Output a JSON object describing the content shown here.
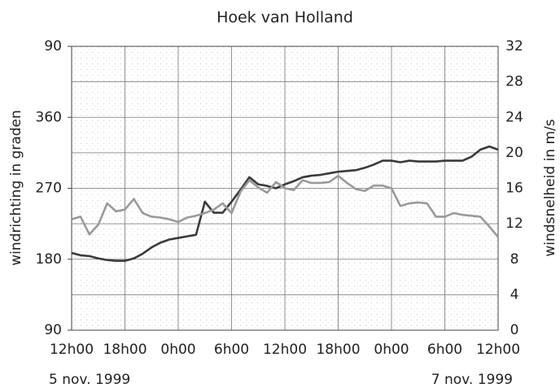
{
  "chart_data": {
    "type": "line",
    "title": "Hoek van Holland",
    "y_label": "windrichting in graden",
    "y2_label": "windsnelheid in m/s",
    "date_labels": [
      "5 nov. 1999",
      "7 nov. 1999"
    ],
    "x": [
      0,
      1,
      2,
      3,
      4,
      5,
      6,
      7,
      8,
      9,
      10,
      11,
      12,
      13,
      14,
      15,
      16,
      17,
      18,
      19,
      20,
      21,
      22,
      23,
      24,
      25,
      26,
      27,
      28,
      29,
      30,
      31,
      32,
      33,
      34,
      35,
      36,
      37,
      38,
      39,
      40,
      41,
      42,
      43,
      44,
      45,
      46,
      47,
      48
    ],
    "xlim": [
      0,
      48
    ],
    "xticks": [
      {
        "value": 0,
        "label": "12h00"
      },
      {
        "value": 6,
        "label": "18h00"
      },
      {
        "value": 12,
        "label": "0h00"
      },
      {
        "value": 18,
        "label": "6h00"
      },
      {
        "value": 24,
        "label": "12h00"
      },
      {
        "value": 30,
        "label": "18h00"
      },
      {
        "value": 36,
        "label": "0h00"
      },
      {
        "value": 42,
        "label": "6h00"
      },
      {
        "value": 48,
        "label": "12h00"
      }
    ],
    "ylim": [
      90,
      450
    ],
    "yticks": [
      90,
      180,
      270,
      360,
      {
        "value": 450,
        "label": "90"
      }
    ],
    "y2lim": [
      0,
      32
    ],
    "y2ticks": [
      0,
      4,
      8,
      12,
      16,
      20,
      24,
      28,
      32
    ],
    "grid": true,
    "series": [
      {
        "color": "#3a3a3a",
        "values": [
          188,
          185,
          184,
          181,
          179,
          178,
          178,
          181,
          187,
          195,
          201,
          205,
          207,
          209,
          211,
          253,
          239,
          239,
          253,
          268,
          284,
          275,
          273,
          270,
          275,
          279,
          284,
          286,
          287,
          289,
          291,
          292,
          293,
          296,
          300,
          305,
          305,
          303,
          305,
          304,
          304,
          304,
          305,
          305,
          305,
          310,
          319,
          323,
          319
        ]
      },
      {
        "color": "#9a9a9a",
        "axis": "y2",
        "values": [
          12.5,
          12.8,
          10.8,
          11.9,
          14.3,
          13.4,
          13.6,
          14.8,
          13.2,
          12.8,
          12.7,
          12.5,
          12.2,
          12.7,
          12.9,
          13.2,
          13.6,
          14.3,
          13.2,
          15.6,
          16.9,
          16.1,
          15.5,
          16.7,
          16.0,
          15.8,
          16.9,
          16.6,
          16.6,
          16.7,
          17.4,
          16.6,
          15.9,
          15.7,
          16.3,
          16.3,
          16.0,
          14.0,
          14.3,
          14.4,
          14.3,
          12.8,
          12.8,
          13.2,
          13.0,
          12.9,
          12.8,
          11.7,
          10.5
        ]
      }
    ]
  }
}
